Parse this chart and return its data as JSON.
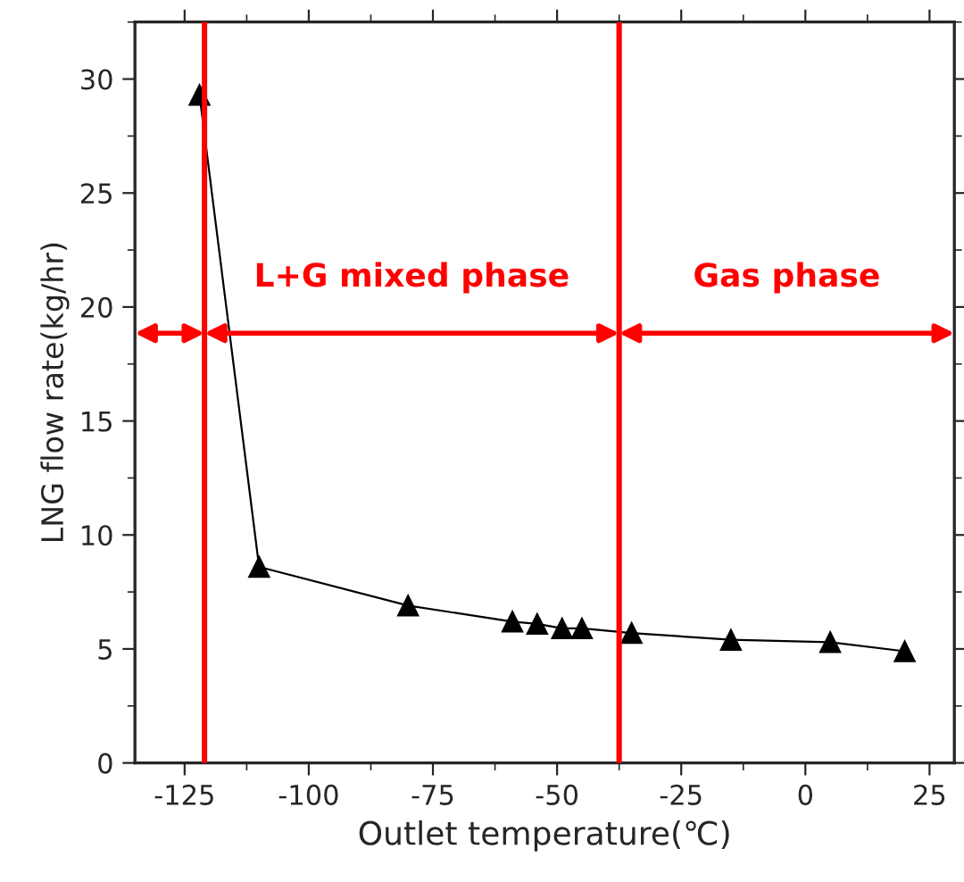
{
  "chart_data": {
    "type": "line",
    "xlabel": "Outlet temperature(℃)",
    "ylabel": "LNG flow rate(kg/hr)",
    "x": [
      -122,
      -110,
      -80,
      -59,
      -54,
      -49,
      -45,
      -35,
      -15,
      5,
      20
    ],
    "series": [
      {
        "color": "#000000",
        "values": [
          29.3,
          8.6,
          6.9,
          6.2,
          6.1,
          5.9,
          5.9,
          5.7,
          5.4,
          5.3,
          4.9
        ]
      }
    ],
    "marker": "triangle",
    "line_style": "solid",
    "grid": false,
    "legend": false,
    "xlim": [
      -135,
      30
    ],
    "xticks": [
      -125,
      -100,
      -75,
      -50,
      -25,
      0,
      25
    ],
    "ylim": [
      0,
      32.5
    ],
    "yticks": [
      0,
      5,
      10,
      15,
      20,
      25,
      30
    ],
    "ref_lines": [
      {
        "axis": "x",
        "value": -121,
        "color": "#ff0000"
      },
      {
        "axis": "x",
        "value": -37.5,
        "color": "#ff0000"
      }
    ],
    "annotations": [
      "L+G mixed phase",
      "Gas phase"
    ]
  }
}
